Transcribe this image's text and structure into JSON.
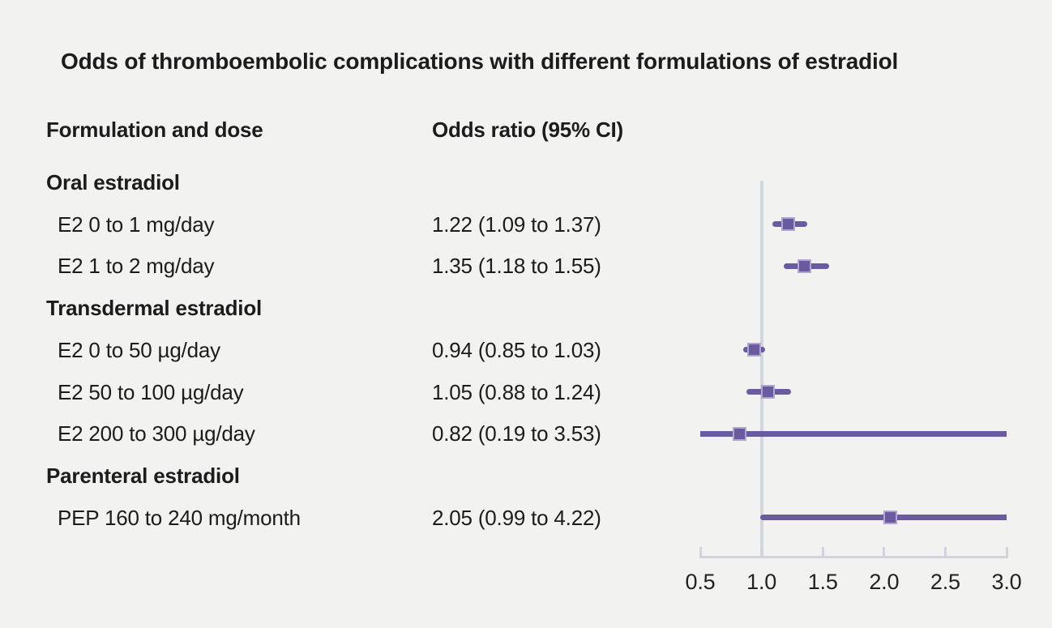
{
  "title": "Odds of thromboembolic complications with different formulations of estradiol",
  "columns": {
    "formulation": "Formulation and dose",
    "odds_ratio": "Odds ratio (95% CI)"
  },
  "chart_data": {
    "type": "forest",
    "title": "Odds of thromboembolic complications with different formulations of estradiol",
    "xlabel": "",
    "legend": "none",
    "axis": {
      "min": 0.5,
      "max": 3.0,
      "tick_values": [
        0.5,
        1.0,
        1.5,
        2.0,
        2.5,
        3.0
      ],
      "tick_labels": [
        "0.5",
        "1.0",
        "1.5",
        "2.0",
        "2.5",
        "3.0"
      ],
      "reference_line": 1.0
    },
    "rows": [
      {
        "type": "group",
        "label": "Oral estradiol"
      },
      {
        "type": "item",
        "label": "E2 0 to 1 mg/day",
        "or_text": "1.22 (1.09 to 1.37)",
        "value": 1.22,
        "ci_low": 1.09,
        "ci_high": 1.37
      },
      {
        "type": "item",
        "label": "E2 1 to 2 mg/day",
        "or_text": "1.35 (1.18 to 1.55)",
        "value": 1.35,
        "ci_low": 1.18,
        "ci_high": 1.55
      },
      {
        "type": "group",
        "label": "Transdermal estradiol"
      },
      {
        "type": "item",
        "label": "E2 0 to 50 µg/day",
        "or_text": "0.94 (0.85 to 1.03)",
        "value": 0.94,
        "ci_low": 0.85,
        "ci_high": 1.03
      },
      {
        "type": "item",
        "label": "E2 50 to 100 µg/day",
        "or_text": "1.05 (0.88 to 1.24)",
        "value": 1.05,
        "ci_low": 0.88,
        "ci_high": 1.24
      },
      {
        "type": "item",
        "label": "E2 200 to 300 µg/day",
        "or_text": "0.82 (0.19 to 3.53)",
        "value": 0.82,
        "ci_low": 0.19,
        "ci_high": 3.53
      },
      {
        "type": "group",
        "label": "Parenteral estradiol"
      },
      {
        "type": "item",
        "label": "PEP 160 to 240 mg/month",
        "or_text": "2.05 (0.99 to 4.22)",
        "value": 2.05,
        "ci_low": 0.99,
        "ci_high": 4.22
      }
    ]
  },
  "colors": {
    "background": "#f2f2f1",
    "text": "#1c1c1c",
    "marker": "#6a5ba1",
    "marker_border": "#b2a6d0",
    "ci_bar": "#6a5ba1",
    "axis": "#d2d4dd",
    "reference_line": "#d3d6de"
  }
}
